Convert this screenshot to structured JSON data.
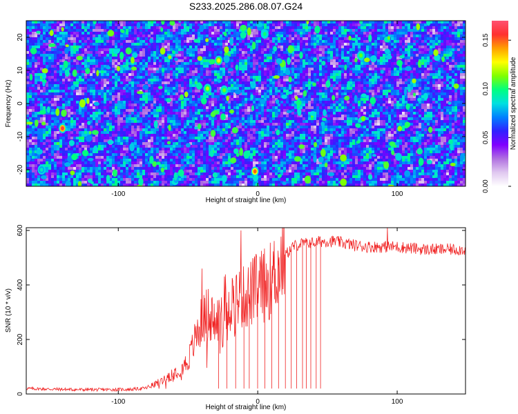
{
  "chart_data": [
    {
      "type": "heatmap",
      "title": "S233.2025.286.08.07.G24",
      "xlabel": "Height of straight line (km)",
      "ylabel": "Frequency (Hz)",
      "xlim": [
        -166,
        149
      ],
      "ylim": [
        -25,
        25
      ],
      "xticks": [
        -100,
        0,
        100
      ],
      "yticks": [
        -20,
        -10,
        0,
        10,
        20
      ],
      "colorbar": {
        "label": "Normalized spectral amplitude",
        "range": [
          0,
          0.17
        ],
        "ticks": [
          "0.00",
          "0.05",
          "0.10",
          "0.15"
        ],
        "colors": [
          "#ffffff",
          "#e0c8f0",
          "#b070e0",
          "#8000ff",
          "#3020ff",
          "#0080ff",
          "#00e0e0",
          "#00ff80",
          "#80ff00",
          "#ffff00",
          "#ffa000",
          "#ff3030",
          "#ff5070"
        ]
      },
      "hotspots": [
        {
          "x": -140,
          "y": -7.5,
          "value": 0.16
        },
        {
          "x": -2,
          "y": -20.5,
          "value": 0.15
        },
        {
          "x": -36,
          "y": 4.5,
          "value": 0.12
        },
        {
          "x": -28,
          "y": 13,
          "value": 0.13
        },
        {
          "x": -24,
          "y": 4,
          "value": 0.11
        },
        {
          "x": 74,
          "y": 14.5,
          "value": 0.11
        },
        {
          "x": 5,
          "y": 21,
          "value": 0.1
        },
        {
          "x": -155,
          "y": -20,
          "value": 0.09
        }
      ]
    },
    {
      "type": "line",
      "xlabel": "Height of straight line (km)",
      "ylabel": "SNR (10 * v/v)",
      "xlim": [
        -166,
        149
      ],
      "ylim": [
        0,
        610
      ],
      "xticks": [
        -100,
        0,
        100
      ],
      "yticks": [
        0,
        200,
        400,
        600
      ],
      "line_color": "#f02020",
      "x": [
        -166,
        -150,
        -130,
        -110,
        -90,
        -80,
        -70,
        -60,
        -55,
        -50,
        -45,
        -40,
        -35,
        -30,
        -25,
        -20,
        -15,
        -10,
        -5,
        0,
        5,
        10,
        15,
        20,
        25,
        30,
        35,
        40,
        45,
        50,
        55,
        60,
        70,
        80,
        90,
        100,
        110,
        120,
        130,
        140,
        149
      ],
      "y": [
        20,
        18,
        16,
        16,
        17,
        22,
        45,
        80,
        95,
        120,
        200,
        270,
        300,
        250,
        330,
        340,
        350,
        350,
        370,
        390,
        400,
        420,
        470,
        510,
        540,
        550,
        555,
        555,
        560,
        560,
        560,
        555,
        545,
        540,
        540,
        540,
        535,
        530,
        530,
        530,
        530
      ],
      "spikes_down": [
        -28,
        -22,
        -16,
        -10,
        -6,
        0,
        5,
        10,
        15,
        20,
        24,
        28,
        32,
        35,
        38,
        42,
        45
      ],
      "spikes_up": [
        {
          "x": -40,
          "y": 460
        },
        {
          "x": -12,
          "y": 600
        },
        {
          "x": 93,
          "y": 610
        }
      ]
    }
  ]
}
